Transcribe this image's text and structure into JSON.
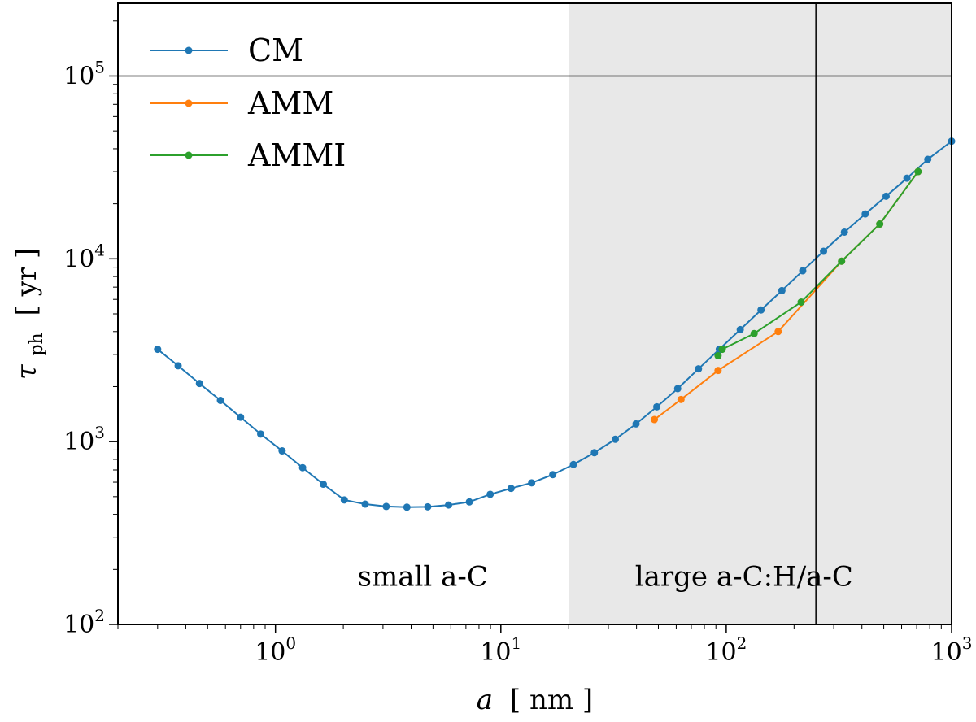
{
  "chart_data": {
    "type": "line",
    "xscale": "log",
    "yscale": "log",
    "xlim": [
      0.2,
      1000
    ],
    "ylim": [
      100,
      250000
    ],
    "xlabel": {
      "var": "a",
      "unit": "[ nm ]"
    },
    "ylabel": {
      "var": "τ",
      "sub": "ph",
      "unit": "[ yr ]"
    },
    "x_ticks": [
      {
        "base": "10",
        "exp": "0",
        "value": 1
      },
      {
        "base": "10",
        "exp": "1",
        "value": 10
      },
      {
        "base": "10",
        "exp": "2",
        "value": 100
      },
      {
        "base": "10",
        "exp": "3",
        "value": 1000
      }
    ],
    "y_ticks": [
      {
        "base": "10",
        "exp": "2",
        "value": 100
      },
      {
        "base": "10",
        "exp": "3",
        "value": 1000
      },
      {
        "base": "10",
        "exp": "4",
        "value": 10000
      },
      {
        "base": "10",
        "exp": "5",
        "value": 100000
      }
    ],
    "shaded_region": {
      "x_from": 20,
      "x_to": 1000,
      "color": "#e8e8e8"
    },
    "reference_lines": {
      "vertical_x": 250,
      "horizontal_y": 100000
    },
    "annotations": [
      {
        "text": "small a-C",
        "x": 4.5,
        "y": 200
      },
      {
        "text": "large a-C:H/a-C",
        "x": 120,
        "y": 200
      }
    ],
    "legend_position": "top-left",
    "series": [
      {
        "name": "CM",
        "color": "#1f77b4",
        "x": [
          0.3,
          0.37,
          0.46,
          0.57,
          0.7,
          0.86,
          1.07,
          1.32,
          1.63,
          2.02,
          2.5,
          3.1,
          3.83,
          4.74,
          5.86,
          7.25,
          8.97,
          11.1,
          13.7,
          17.0,
          21.0,
          26.0,
          32.2,
          39.8,
          49.2,
          60.9,
          75.3,
          93.2,
          115.4,
          142.7,
          176.6,
          218.5,
          270.3,
          334.5,
          413.9,
          512.1,
          633.7,
          784.1,
          1000
        ],
        "y": [
          3200,
          2600,
          2080,
          1680,
          1360,
          1100,
          890,
          720,
          585,
          480,
          455,
          442,
          438,
          440,
          450,
          468,
          515,
          555,
          595,
          660,
          750,
          870,
          1030,
          1250,
          1550,
          1950,
          2500,
          3200,
          4100,
          5250,
          6700,
          8600,
          11000,
          14000,
          17600,
          22000,
          27600,
          35000,
          44000
        ]
      },
      {
        "name": "AMM",
        "color": "#ff7f0e",
        "x": [
          48,
          63,
          92,
          170,
          325,
          480,
          710
        ],
        "y": [
          1320,
          1700,
          2450,
          4000,
          9700,
          15500,
          30000
        ]
      },
      {
        "name": "AMMI",
        "color": "#2ca02c",
        "x": [
          92,
          96,
          133,
          215,
          325,
          480,
          710
        ],
        "y": [
          2950,
          3200,
          3900,
          5800,
          9700,
          15500,
          30000
        ]
      }
    ]
  }
}
